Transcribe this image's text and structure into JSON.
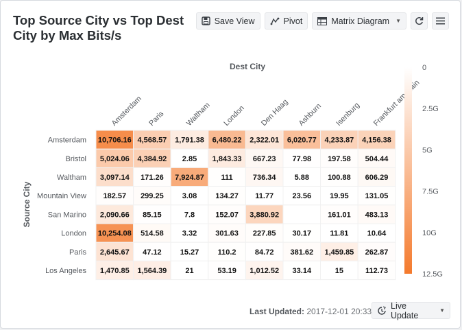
{
  "card": {
    "title": "Top Source City vs Top Dest City by Max Bits/s"
  },
  "toolbar": {
    "save_label": "Save View",
    "pivot_label": "Pivot",
    "chart_type_label": "Matrix Diagram",
    "icons": [
      "save-icon",
      "pivot-icon",
      "matrix-icon",
      "refresh-icon",
      "menu-icon"
    ]
  },
  "footer": {
    "last_updated_label": "Last Updated:",
    "last_updated_value": "2017-12-01 20:33",
    "live_update_label": "Live Update"
  },
  "colors": {
    "scale_low": "#ffffff",
    "scale_high": "#f47a2d"
  },
  "chart_data": {
    "type": "heatmap",
    "xlabel": "Dest City",
    "ylabel": "Source City",
    "columns": [
      "Amsterdam",
      "Paris",
      "Waltham",
      "London",
      "Den Haag",
      "Ashburn",
      "Isenburg",
      "Frankfurt am Main"
    ],
    "rows": [
      "Amsterdam",
      "Bristol",
      "Waltham",
      "Mountain View",
      "San Marino",
      "London",
      "Paris",
      "Los Angeles"
    ],
    "values": [
      [
        10706.16,
        4568.57,
        1791.38,
        6480.22,
        2322.01,
        6020.77,
        4233.87,
        4156.38
      ],
      [
        5024.06,
        4384.92,
        2.85,
        1843.33,
        667.23,
        77.98,
        197.58,
        504.44
      ],
      [
        3097.14,
        171.26,
        7924.87,
        111,
        736.34,
        5.88,
        100.88,
        606.29
      ],
      [
        182.57,
        299.25,
        3.08,
        134.27,
        11.77,
        23.56,
        19.95,
        131.05
      ],
      [
        2090.66,
        85.15,
        7.8,
        152.07,
        3880.92,
        null,
        161.01,
        483.13
      ],
      [
        10254.08,
        514.58,
        3.32,
        301.63,
        227.85,
        30.17,
        11.81,
        10.64
      ],
      [
        2645.67,
        47.12,
        15.27,
        110.2,
        84.72,
        381.62,
        1459.85,
        262.87
      ],
      [
        1470.85,
        1564.39,
        21,
        53.19,
        1012.52,
        33.14,
        15,
        112.73
      ]
    ],
    "labels": [
      [
        "10,706.16",
        "4,568.57",
        "1,791.38",
        "6,480.22",
        "2,322.01",
        "6,020.77",
        "4,233.87",
        "4,156.38"
      ],
      [
        "5,024.06",
        "4,384.92",
        "2.85",
        "1,843.33",
        "667.23",
        "77.98",
        "197.58",
        "504.44"
      ],
      [
        "3,097.14",
        "171.26",
        "7,924.87",
        "111",
        "736.34",
        "5.88",
        "100.88",
        "606.29"
      ],
      [
        "182.57",
        "299.25",
        "3.08",
        "134.27",
        "11.77",
        "23.56",
        "19.95",
        "131.05"
      ],
      [
        "2,090.66",
        "85.15",
        "7.8",
        "152.07",
        "3,880.92",
        "",
        "161.01",
        "483.13"
      ],
      [
        "10,254.08",
        "514.58",
        "3.32",
        "301.63",
        "227.85",
        "30.17",
        "11.81",
        "10.64"
      ],
      [
        "2,645.67",
        "47.12",
        "15.27",
        "110.2",
        "84.72",
        "381.62",
        "1,459.85",
        "262.87"
      ],
      [
        "1,470.85",
        "1,564.39",
        "21",
        "53.19",
        "1,012.52",
        "33.14",
        "15",
        "112.73"
      ]
    ],
    "color_scale": {
      "range": [
        0,
        12.5
      ],
      "ticks": [
        "0",
        "2.5G",
        "5G",
        "7.5G",
        "10G",
        "12.5G"
      ]
    }
  }
}
